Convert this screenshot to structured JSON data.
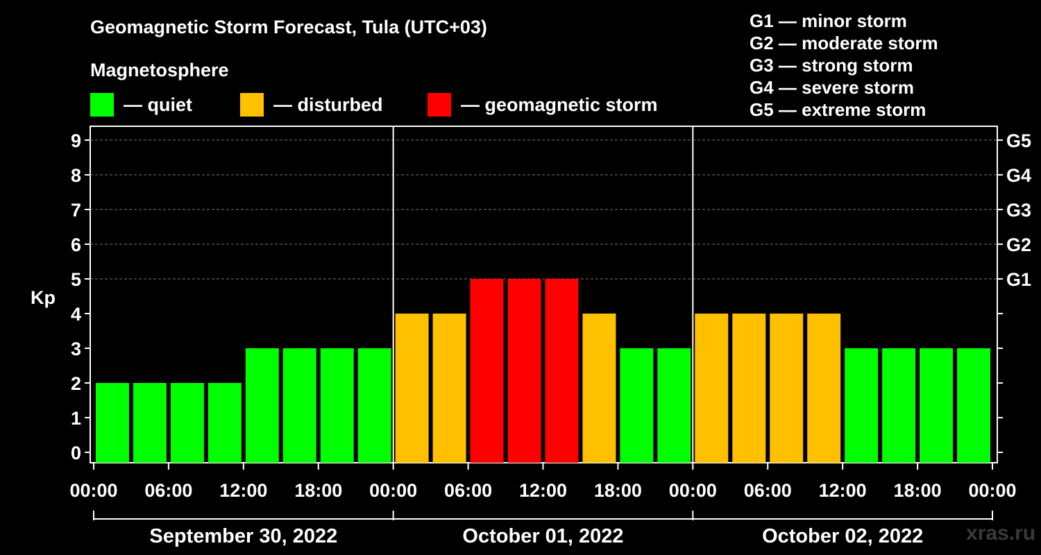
{
  "header": {
    "title": "Geomagnetic Storm Forecast, Tula (UTC+03)",
    "subtitle": "Magnetosphere"
  },
  "legend": [
    {
      "label": "— quiet",
      "color": "#00ff00"
    },
    {
      "label": "— disturbed",
      "color": "#ffc000"
    },
    {
      "label": "— geomagnetic storm",
      "color": "#ff0000"
    }
  ],
  "gscale": [
    "G1 — minor storm",
    "G2 — moderate storm",
    "G3 — strong storm",
    "G4 — severe storm",
    "G5 — extreme storm"
  ],
  "watermark": "xras.ru",
  "chart_data": {
    "type": "bar",
    "ylabel": "Kp",
    "ylim": [
      0,
      9
    ],
    "y_ticks": [
      "0",
      "1",
      "2",
      "3",
      "4",
      "5",
      "6",
      "7",
      "8",
      "9"
    ],
    "right_axis_labels": [
      {
        "kp": 5,
        "label": "G1"
      },
      {
        "kp": 6,
        "label": "G2"
      },
      {
        "kp": 7,
        "label": "G3"
      },
      {
        "kp": 8,
        "label": "G4"
      },
      {
        "kp": 9,
        "label": "G5"
      }
    ],
    "grid": true,
    "x_ticks": [
      "00:00",
      "06:00",
      "12:00",
      "18:00",
      "00:00",
      "06:00",
      "12:00",
      "18:00",
      "00:00",
      "06:00",
      "12:00",
      "18:00",
      "00:00"
    ],
    "days": [
      "September 30, 2022",
      "October 01, 2022",
      "October 02, 2022"
    ],
    "values": [
      2,
      2,
      2,
      2,
      3,
      3,
      3,
      3,
      4,
      4,
      5,
      5,
      5,
      4,
      3,
      3,
      4,
      4,
      4,
      4,
      3,
      3,
      3,
      3
    ],
    "colors": {
      "quiet": "#00ff00",
      "disturbed": "#ffc000",
      "storm": "#ff0000"
    }
  }
}
